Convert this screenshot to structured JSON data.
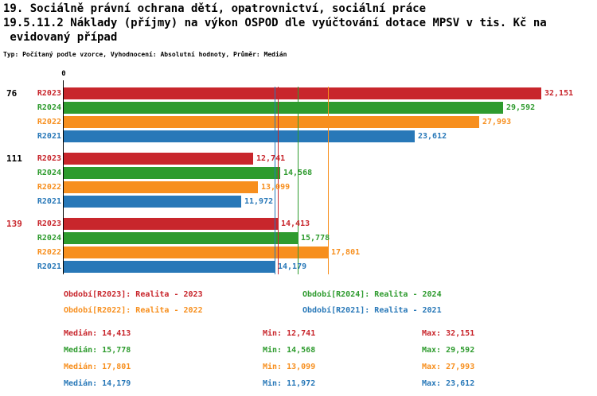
{
  "title": {
    "line1": "19. Sociálně právní ochrana dětí, opatrovnictví, sociální práce",
    "line2": "19.5.11.2 Náklady (příjmy) na výkon OSPOD dle vyúčtování dotace MPSV v tis. Kč na",
    "line3": " evidovaný případ",
    "subtitle": "Typ: Počítaný podle vzorce, Vyhodnocení: Absolutní hodnoty, Průměr: Medián"
  },
  "chart_data": {
    "type": "bar",
    "orientation": "horizontal",
    "x_axis": {
      "origin_label": "0",
      "max": 32151
    },
    "series": [
      "R2023",
      "R2024",
      "R2022",
      "R2021"
    ],
    "series_colors": {
      "R2023": "#c8262c",
      "R2024": "#2e9b2e",
      "R2022": "#f78f1e",
      "R2021": "#2878b8"
    },
    "groups": [
      {
        "label": "76",
        "label_color": "#000000",
        "bars": [
          {
            "series": "R2023",
            "value": 32151,
            "text": "32,151"
          },
          {
            "series": "R2024",
            "value": 29592,
            "text": "29,592"
          },
          {
            "series": "R2022",
            "value": 27993,
            "text": "27,993"
          },
          {
            "series": "R2021",
            "value": 23612,
            "text": "23,612"
          }
        ]
      },
      {
        "label": "111",
        "label_color": "#000000",
        "bars": [
          {
            "series": "R2023",
            "value": 12741,
            "text": "12,741"
          },
          {
            "series": "R2024",
            "value": 14568,
            "text": "14,568"
          },
          {
            "series": "R2022",
            "value": 13099,
            "text": "13,099"
          },
          {
            "series": "R2021",
            "value": 11972,
            "text": "11,972"
          }
        ]
      },
      {
        "label": "139",
        "label_color": "#c8262c",
        "bars": [
          {
            "series": "R2023",
            "value": 14413,
            "text": "14,413"
          },
          {
            "series": "R2024",
            "value": 15778,
            "text": "15,778"
          },
          {
            "series": "R2022",
            "value": 17801,
            "text": "17,801"
          },
          {
            "series": "R2021",
            "value": 14179,
            "text": "14,179"
          }
        ]
      }
    ],
    "median_lines": [
      {
        "series": "R2021",
        "value": 14179
      },
      {
        "series": "R2023",
        "value": 14413
      },
      {
        "series": "R2024",
        "value": 15778
      },
      {
        "series": "R2022",
        "value": 17801
      }
    ]
  },
  "legend": [
    {
      "series": "R2023",
      "text": "Období[R2023]: Realita - 2023"
    },
    {
      "series": "R2024",
      "text": "Období[R2024]: Realita - 2024"
    },
    {
      "series": "R2022",
      "text": "Období[R2022]: Realita - 2022"
    },
    {
      "series": "R2021",
      "text": "Období[R2021]: Realita - 2021"
    }
  ],
  "stats": [
    {
      "series": "R2023",
      "median": "Medián: 14,413",
      "min": "Min: 12,741",
      "max": "Max: 32,151"
    },
    {
      "series": "R2024",
      "median": "Medián: 15,778",
      "min": "Min: 14,568",
      "max": "Max: 29,592"
    },
    {
      "series": "R2022",
      "median": "Medián: 17,801",
      "min": "Min: 13,099",
      "max": "Max: 27,993"
    },
    {
      "series": "R2021",
      "median": "Medián: 14,179",
      "min": "Min: 11,972",
      "max": "Max: 23,612"
    }
  ]
}
